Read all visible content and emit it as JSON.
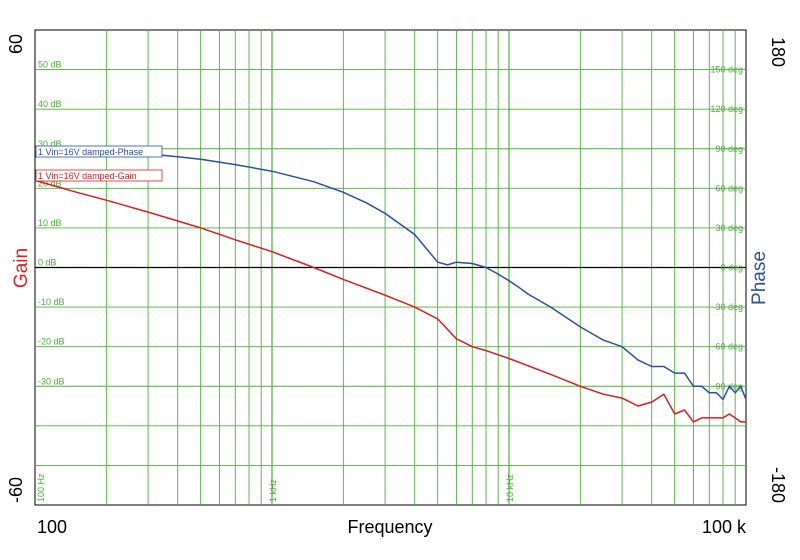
{
  "chart_data": {
    "type": "line",
    "xscale": "log",
    "xlim": [
      100,
      100000
    ],
    "xlabel": "Frequency",
    "x_corner_labels": {
      "left": "100",
      "right": "100 k"
    },
    "x_inner_tick_labels": [
      {
        "value": 100,
        "text": "100 Hz"
      },
      {
        "value": 1000,
        "text": "1 kHz"
      },
      {
        "value": 10000,
        "text": "10 kHz"
      }
    ],
    "left_axis": {
      "label": "Gain",
      "label_color": "#e02020",
      "ylim": [
        -60,
        60
      ],
      "end_labels": {
        "top": "60",
        "bottom": "-60"
      },
      "tick_labels": [
        {
          "value": 50,
          "text": "50 dB"
        },
        {
          "value": 40,
          "text": "40 dB"
        },
        {
          "value": 30,
          "text": "30 dB"
        },
        {
          "value": 20,
          "text": "20 dB"
        },
        {
          "value": 10,
          "text": "10 dB"
        },
        {
          "value": 0,
          "text": "0 dB"
        },
        {
          "value": -10,
          "text": "-10 dB"
        },
        {
          "value": -20,
          "text": "-20 dB"
        },
        {
          "value": -30,
          "text": "-30 dB"
        }
      ]
    },
    "right_axis": {
      "label": "Phase",
      "label_color": "#2a50a0",
      "ylim": [
        -180,
        180
      ],
      "end_labels": {
        "top": "180",
        "bottom": "-180"
      },
      "tick_labels": [
        {
          "value": 150,
          "text": "150 deg"
        },
        {
          "value": 120,
          "text": "120 deg"
        },
        {
          "value": 90,
          "text": "90 deg"
        },
        {
          "value": 60,
          "text": "60 deg"
        },
        {
          "value": 30,
          "text": "30 deg"
        },
        {
          "value": 0,
          "text": "0 deg"
        },
        {
          "value": -30,
          "text": "-30 deg"
        },
        {
          "value": -60,
          "text": "-60 deg"
        },
        {
          "value": -90,
          "text": "-90 deg"
        }
      ]
    },
    "grid": true,
    "grid_color": "#4caf3c",
    "zero_line_color": "#000000",
    "series": [
      {
        "name": "1 Vin=16V damped-Phase",
        "axis": "right",
        "color": "#2a50a0",
        "x": [
          100,
          150,
          200,
          300,
          400,
          500,
          700,
          1000,
          1500,
          2000,
          2500,
          3000,
          4000,
          5000,
          5500,
          6000,
          7000,
          8000,
          9000,
          10000,
          11000,
          12000,
          15000,
          20000,
          25000,
          30000,
          35000,
          40000,
          45000,
          50000,
          55000,
          60000,
          65000,
          70000,
          75000,
          80000,
          85000,
          90000,
          95000,
          100000
        ],
        "y": [
          89,
          88,
          87.5,
          86,
          84,
          82,
          78,
          73,
          65,
          57,
          49,
          41,
          25,
          4,
          2,
          4,
          3,
          0,
          -5,
          -10,
          -15,
          -20,
          -30,
          -45,
          -55,
          -60,
          -70,
          -75,
          -75,
          -80,
          -80,
          -90,
          -90,
          -95,
          -95,
          -100,
          -90,
          -95,
          -90,
          -100
        ]
      },
      {
        "name": "1 Vin=16V damped-Gain",
        "axis": "left",
        "color": "#d42020",
        "x": [
          100,
          150,
          200,
          300,
          500,
          700,
          1000,
          1500,
          2000,
          3000,
          4000,
          5000,
          6000,
          7000,
          8000,
          10000,
          15000,
          20000,
          25000,
          30000,
          35000,
          40000,
          45000,
          50000,
          55000,
          60000,
          65000,
          70000,
          75000,
          80000,
          85000,
          90000,
          95000,
          100000
        ],
        "y": [
          22,
          19,
          17,
          14,
          10,
          7,
          4,
          0,
          -3,
          -7,
          -10,
          -13,
          -18,
          -20,
          -21,
          -23,
          -27,
          -30,
          -32,
          -33,
          -35,
          -34,
          -32,
          -37,
          -36,
          -39,
          -38,
          -38,
          -38,
          -38,
          -37,
          -38,
          -39,
          -39
        ]
      }
    ],
    "legend": {
      "placement": "top-left",
      "entries": [
        {
          "text": "1  Vin=16V damped-Phase",
          "color": "#2a50a0"
        },
        {
          "text": "1  Vin=16V damped-Gain",
          "color": "#d42020"
        }
      ]
    }
  }
}
